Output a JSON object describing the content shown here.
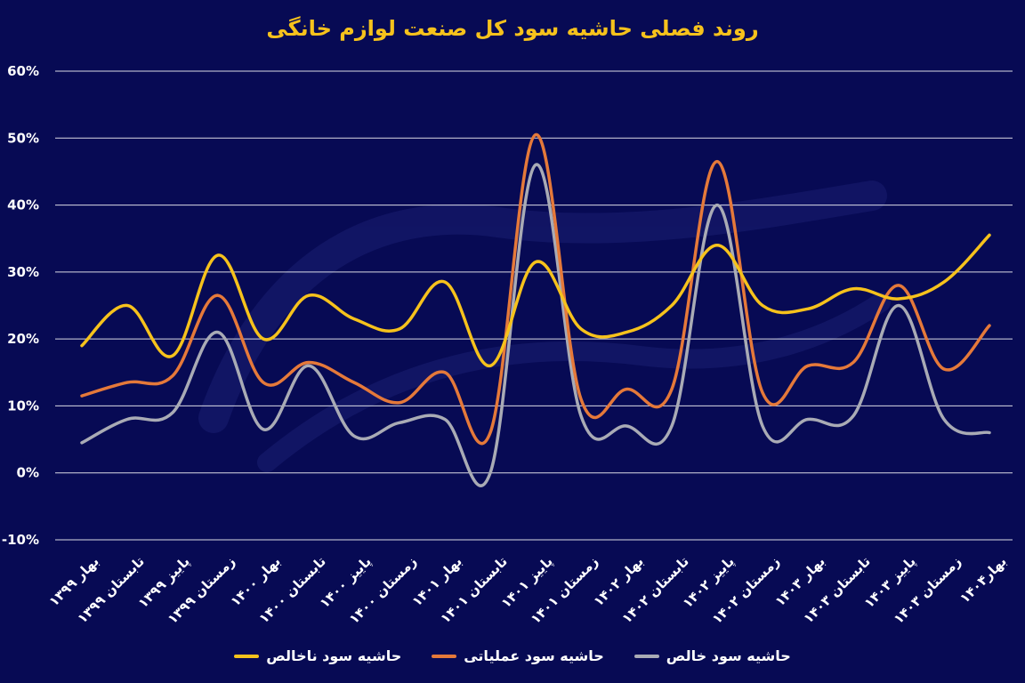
{
  "chart_data": {
    "type": "line",
    "title": "روند فصلی حاشیه سود کل صنعت لوازم خانگی",
    "xlabel": "",
    "ylabel": "",
    "ylim": [
      -10,
      60
    ],
    "y_ticks": [
      "-10%",
      "0%",
      "10%",
      "20%",
      "30%",
      "40%",
      "50%",
      "60%"
    ],
    "y_tick_values": [
      -10,
      0,
      10,
      20,
      30,
      40,
      50,
      60
    ],
    "grid": true,
    "legend_position": "bottom",
    "categories": [
      "بهار ۱۳۹۹",
      "تابستان ۱۳۹۹",
      "پاییز ۱۳۹۹",
      "زمستان ۱۳۹۹",
      "بهار ۱۴۰۰",
      "تابستان ۱۴۰۰",
      "پاییز ۱۴۰۰",
      "زمستان ۱۴۰۰",
      "بهار ۱۴۰۱",
      "تابستان ۱۴۰۱",
      "پاییز ۱۴۰۱",
      "زمستان ۱۴۰۱",
      "بهار ۱۴۰۲",
      "تابستان ۱۴۰۲",
      "پاییز ۱۴۰۲",
      "زمستان ۱۴۰۲",
      "بهار ۱۴۰۳",
      "تابستان ۱۴۰۳",
      "پاییز ۱۴۰۳",
      "زمستان ۱۴۰۳",
      "بهار۱۴۰۴"
    ],
    "series": [
      {
        "name": "حاشیه سود ناخالص",
        "color": "#f6c21c",
        "values": [
          19,
          25,
          17.5,
          32.5,
          20,
          26.5,
          23,
          21.5,
          28.5,
          16,
          31.5,
          21.5,
          21,
          25,
          34,
          25,
          24.5,
          27.5,
          26,
          28.5,
          35.5
        ]
      },
      {
        "name": "حاشیه سود عملیاتی",
        "color": "#e5793a",
        "values": [
          11.5,
          13.5,
          14.5,
          26.5,
          13.5,
          16.5,
          13.5,
          10.5,
          15,
          6,
          50.5,
          11,
          12.5,
          12.5,
          46.5,
          12,
          16,
          16.5,
          28,
          15.5,
          22
        ]
      },
      {
        "name": "حاشیه سود خالص",
        "color": "#a9abb5",
        "values": [
          4.5,
          8,
          9,
          21,
          6.5,
          16,
          5.5,
          7.5,
          8,
          0,
          46,
          8.5,
          7,
          7,
          40,
          7,
          8,
          8.5,
          25,
          8,
          6
        ]
      }
    ]
  }
}
